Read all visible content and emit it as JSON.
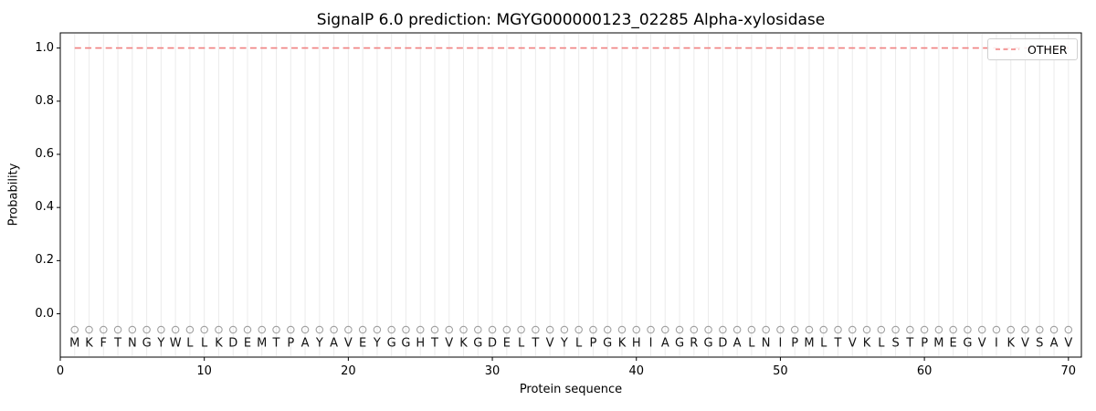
{
  "figure": {
    "title": "SignalP 6.0 prediction: MGYG000000123_02285 Alpha-xylosidase"
  },
  "axes": {
    "xlabel": "Protein sequence",
    "ylabel": "Probability",
    "xticks": [
      0,
      10,
      20,
      30,
      40,
      50,
      60,
      70
    ],
    "yticks": [
      {
        "label": "1.0",
        "value": 1.0
      },
      {
        "label": "0.8",
        "value": 0.8
      },
      {
        "label": "0.6",
        "value": 0.6
      },
      {
        "label": "0.4",
        "value": 0.4
      },
      {
        "label": "0.2",
        "value": 0.2
      },
      {
        "label": "0.0",
        "value": 0.0
      }
    ]
  },
  "legend": {
    "entries": [
      {
        "label": "OTHER",
        "color": "#f08080",
        "style": "dashed"
      }
    ]
  },
  "chart_data": {
    "type": "line",
    "title": "SignalP 6.0 prediction: MGYG000000123_02285 Alpha-xylosidase",
    "xlabel": "Protein sequence",
    "ylabel": "Probability",
    "xlim": [
      0,
      70.9
    ],
    "ylim": [
      -0.163,
      1.057
    ],
    "grid": "vertical gridline at every residue position",
    "legend_position": "upper right",
    "series": [
      {
        "name": "OTHER",
        "style": "dashed",
        "color": "#f08080",
        "x_start": 1,
        "x_end": 70,
        "y_constant": 1.0
      }
    ],
    "sequence": "MKFTNGYWLLKDEMTPAYAVEYGGHTVKGDELTVYLPGKHIAGRGDALNIPMLTVKLSTPMEGVIKVSAV",
    "sequence_markers": {
      "shape": "open-circle",
      "color": "#a0a0a0",
      "y": -0.06
    },
    "sequence_label_y": -0.11
  },
  "colors": {
    "background": "#ffffff",
    "spine": "#000000",
    "grid": "#ebebeb",
    "other_line": "#f08080",
    "marker": "#a0a0a0",
    "letter": "#111111",
    "legend_border": "#d0d0d0"
  }
}
